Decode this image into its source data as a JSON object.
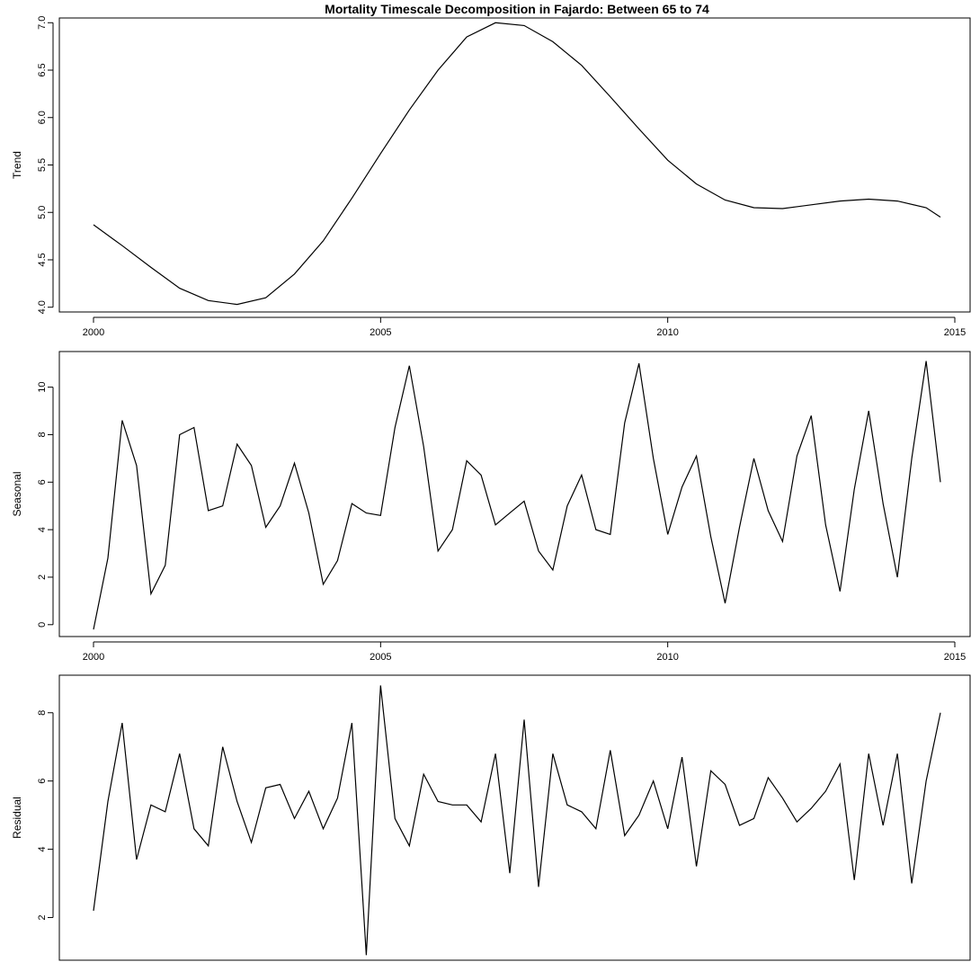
{
  "chart_data": {
    "type": "line",
    "title": "Mortality Timescale Decomposition in Fajardo: Between 65 to 74",
    "panels": [
      {
        "ylabel": "Trend",
        "ylim": [
          3.95,
          7.05
        ],
        "yticks": [
          4.0,
          4.5,
          5.0,
          5.5,
          6.0,
          6.5,
          7.0
        ],
        "ytick_labels": [
          "4.0",
          "4.5",
          "5.0",
          "5.5",
          "6.0",
          "6.5",
          "7.0"
        ],
        "xticks": [
          2000,
          2005,
          2010,
          2015
        ],
        "xtick_labels": [
          "2000",
          "2005",
          "2010",
          "2015"
        ],
        "x": [
          2000,
          2000.5,
          2001,
          2001.5,
          2002,
          2002.5,
          2003,
          2003.5,
          2004,
          2004.5,
          2005,
          2005.5,
          2006,
          2006.5,
          2007,
          2007.5,
          2008,
          2008.5,
          2009,
          2009.5,
          2010,
          2010.5,
          2011,
          2011.5,
          2012,
          2012.5,
          2013,
          2013.5,
          2014,
          2014.5,
          2014.75
        ],
        "values": [
          4.87,
          4.65,
          4.42,
          4.2,
          4.07,
          4.03,
          4.1,
          4.35,
          4.7,
          5.15,
          5.62,
          6.08,
          6.5,
          6.85,
          7.0,
          6.97,
          6.8,
          6.55,
          6.22,
          5.88,
          5.55,
          5.3,
          5.13,
          5.05,
          5.04,
          5.08,
          5.12,
          5.14,
          5.12,
          5.05,
          4.95
        ]
      },
      {
        "ylabel": "Seasonal",
        "ylim": [
          -0.5,
          11.5
        ],
        "yticks": [
          0,
          2,
          4,
          6,
          8,
          10
        ],
        "ytick_labels": [
          "0",
          "2",
          "4",
          "6",
          "8",
          "10"
        ],
        "xticks": [
          2000,
          2005,
          2010,
          2015
        ],
        "xtick_labels": [
          "2000",
          "2005",
          "2010",
          "2015"
        ],
        "x": [
          2000,
          2000.25,
          2000.5,
          2000.75,
          2001,
          2001.25,
          2001.5,
          2001.75,
          2002,
          2002.25,
          2002.5,
          2002.75,
          2003,
          2003.25,
          2003.5,
          2003.75,
          2004,
          2004.25,
          2004.5,
          2004.75,
          2005,
          2005.25,
          2005.5,
          2005.75,
          2006,
          2006.25,
          2006.5,
          2006.75,
          2007,
          2007.25,
          2007.5,
          2007.75,
          2008,
          2008.25,
          2008.5,
          2008.75,
          2009,
          2009.25,
          2009.5,
          2009.75,
          2010,
          2010.25,
          2010.5,
          2010.75,
          2011,
          2011.25,
          2011.5,
          2011.75,
          2012,
          2012.25,
          2012.5,
          2012.75,
          2013,
          2013.25,
          2013.5,
          2013.75,
          2014,
          2014.25,
          2014.5,
          2014.75
        ],
        "values": [
          -0.2,
          2.8,
          8.6,
          6.7,
          1.3,
          2.5,
          8.0,
          8.3,
          4.8,
          5.0,
          7.6,
          6.7,
          4.1,
          5.0,
          6.8,
          4.7,
          1.7,
          2.7,
          5.1,
          4.7,
          4.6,
          8.3,
          10.9,
          7.5,
          3.1,
          4.0,
          6.9,
          6.3,
          4.2,
          4.7,
          5.2,
          3.1,
          2.3,
          5.0,
          6.3,
          4.0,
          3.8,
          8.5,
          11.0,
          7.0,
          3.8,
          5.8,
          7.1,
          3.7,
          0.9,
          4.1,
          7.0,
          4.8,
          3.5,
          7.1,
          8.8,
          4.2,
          1.4,
          5.7,
          9.0,
          5.1,
          2.0,
          7.0,
          11.1,
          6.0
        ]
      },
      {
        "ylabel": "Residual",
        "ylim": [
          0.75,
          9.1
        ],
        "yticks": [
          2,
          4,
          6,
          8
        ],
        "ytick_labels": [
          "2",
          "4",
          "6",
          "8"
        ],
        "xticks": [
          2000,
          2005,
          2010,
          2015
        ],
        "xtick_labels": [],
        "x": [
          2000,
          2000.25,
          2000.5,
          2000.75,
          2001,
          2001.25,
          2001.5,
          2001.75,
          2002,
          2002.25,
          2002.5,
          2002.75,
          2003,
          2003.25,
          2003.5,
          2003.75,
          2004,
          2004.25,
          2004.5,
          2004.75,
          2005,
          2005.25,
          2005.5,
          2005.75,
          2006,
          2006.25,
          2006.5,
          2006.75,
          2007,
          2007.25,
          2007.5,
          2007.75,
          2008,
          2008.25,
          2008.5,
          2008.75,
          2009,
          2009.25,
          2009.5,
          2009.75,
          2010,
          2010.25,
          2010.5,
          2010.75,
          2011,
          2011.25,
          2011.5,
          2011.75,
          2012,
          2012.25,
          2012.5,
          2012.75,
          2013,
          2013.25,
          2013.5,
          2013.75,
          2014,
          2014.25,
          2014.5,
          2014.75
        ],
        "values": [
          2.2,
          5.4,
          7.7,
          3.7,
          5.3,
          5.1,
          6.8,
          4.6,
          4.1,
          7.0,
          5.4,
          4.2,
          5.8,
          5.9,
          4.9,
          5.7,
          4.6,
          5.5,
          7.7,
          0.9,
          8.8,
          4.9,
          4.1,
          6.2,
          5.4,
          5.3,
          5.3,
          4.8,
          6.8,
          3.3,
          7.8,
          2.9,
          6.8,
          5.3,
          5.1,
          4.6,
          6.9,
          4.4,
          5.0,
          6.0,
          4.6,
          6.7,
          3.5,
          6.3,
          5.9,
          4.7,
          4.9,
          6.1,
          5.5,
          4.8,
          5.2,
          5.7,
          6.5,
          3.1,
          6.8,
          4.7,
          6.8,
          3.0,
          6.0,
          8.0
        ]
      }
    ]
  }
}
